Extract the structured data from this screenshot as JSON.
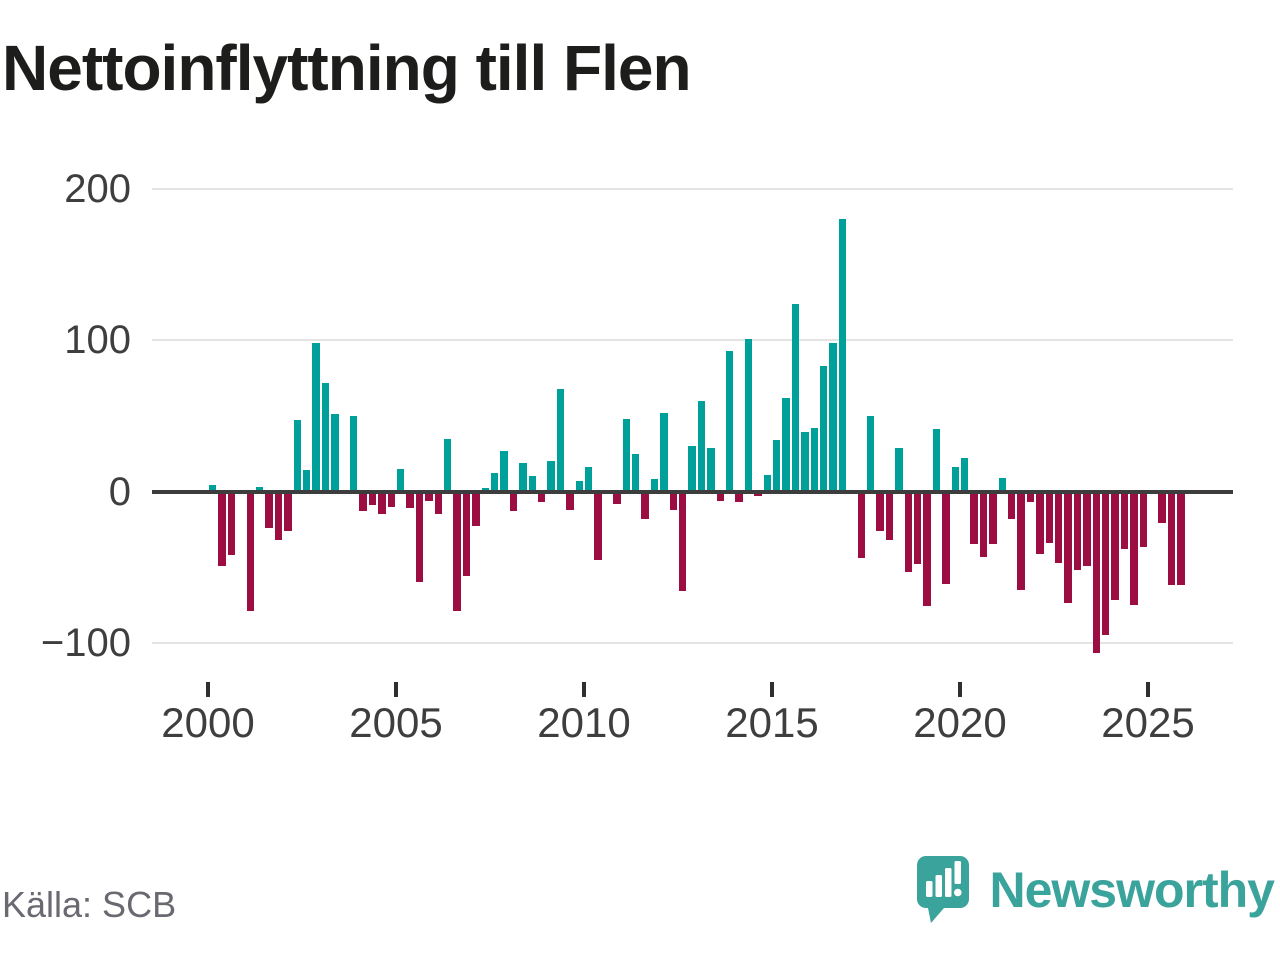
{
  "title": "Nettoinflyttning till Flen",
  "source": "Källa: SCB",
  "branding": {
    "name": "Newsworthy",
    "icon": "newsworthy-speech-bubble-chart-icon",
    "color": "#3aa39b"
  },
  "colors": {
    "positive_bar": "#00a09a",
    "negative_bar": "#9c0d42",
    "title_text": "#1d1d1b",
    "axis_text": "#3e3e3e",
    "source_text": "#696971",
    "gridline": "#e4e4e4",
    "zero_line": "#3d3d3d"
  },
  "chart_data": {
    "type": "bar",
    "title": "Nettoinflyttning till Flen",
    "x_unit": "quarter",
    "start_quarter": "2000Q1",
    "end_quarter": "2025Q4",
    "start_year": 2000,
    "quarters_per_year": 4,
    "x_tick_labels": [
      "2000",
      "2005",
      "2010",
      "2015",
      "2020",
      "2025"
    ],
    "x_tick_years": [
      2000,
      2005,
      2010,
      2015,
      2020,
      2025
    ],
    "y_tick_labels": [
      "200",
      "100",
      "0",
      "−100"
    ],
    "y_ticks": [
      200,
      100,
      0,
      -100
    ],
    "ylim": [
      -130,
      230
    ],
    "grid": true,
    "legend": false,
    "values": [
      4,
      -49,
      -42,
      0,
      -79,
      3,
      -24,
      -32,
      -26,
      47,
      14,
      98,
      72,
      51,
      0,
      50,
      -13,
      -9,
      -15,
      -10,
      15,
      -11,
      -60,
      -6,
      -15,
      35,
      -79,
      -56,
      -23,
      2,
      12,
      27,
      -13,
      19,
      10,
      -7,
      20,
      68,
      -12,
      7,
      16,
      -45,
      0,
      -8,
      48,
      25,
      -18,
      8,
      52,
      -12,
      -66,
      30,
      60,
      29,
      -6,
      93,
      -7,
      101,
      -3,
      11,
      34,
      62,
      124,
      39,
      42,
      83,
      98,
      180,
      0,
      -44,
      50,
      -26,
      -32,
      29,
      -53,
      -48,
      -76,
      41,
      -61,
      16,
      22,
      -35,
      -43,
      -35,
      9,
      -18,
      -65,
      -7,
      -41,
      -34,
      -47,
      -74,
      -52,
      -49,
      -107,
      -95,
      -72,
      -38,
      -75,
      -37,
      0,
      -21,
      -62,
      -62
    ]
  }
}
